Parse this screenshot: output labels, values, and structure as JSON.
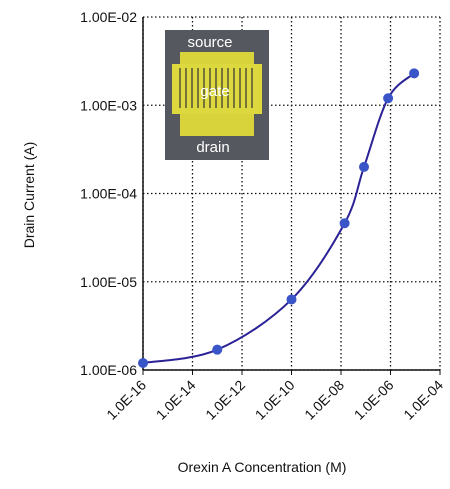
{
  "chart_data": {
    "type": "line",
    "x_label": "Orexin A Concentration (M)",
    "y_label": "Drain Current (A)",
    "x_scale": "log",
    "y_scale": "log",
    "grid": true,
    "series": [
      {
        "color": "#2b2296",
        "marker_color": "#3a55c8",
        "x": [
          1e-16,
          1e-13,
          1e-10,
          1.4e-08,
          8.5e-08,
          8e-07,
          9e-06
        ],
        "values": [
          1.2e-06,
          1.7e-06,
          6.3e-06,
          4.6e-05,
          0.0002,
          0.0012,
          0.0023
        ]
      }
    ],
    "xlim": [
      1e-16,
      0.0001
    ],
    "xticks": [
      {
        "value": 1e-16,
        "label": "1.0E-16"
      },
      {
        "value": 1e-14,
        "label": "1.0E-14"
      },
      {
        "value": 1e-12,
        "label": "1.0E-12"
      },
      {
        "value": 1e-10,
        "label": "1.0E-10"
      },
      {
        "value": 1e-08,
        "label": "1.0E-08"
      },
      {
        "value": 1e-06,
        "label": "1.0E-06"
      },
      {
        "value": 0.0001,
        "label": "1.0E-04"
      }
    ],
    "ylim": [
      1e-06,
      0.01
    ],
    "yticks": [
      {
        "value": 1e-06,
        "label": "1.00E-06"
      },
      {
        "value": 1e-05,
        "label": "1.00E-05"
      },
      {
        "value": 0.0001,
        "label": "1.00E-04"
      },
      {
        "value": 0.001,
        "label": "1.00E-03"
      },
      {
        "value": 0.01,
        "label": "1.00E-02"
      }
    ],
    "inset": {
      "labels": [
        "source",
        "gate",
        "drain"
      ]
    }
  }
}
